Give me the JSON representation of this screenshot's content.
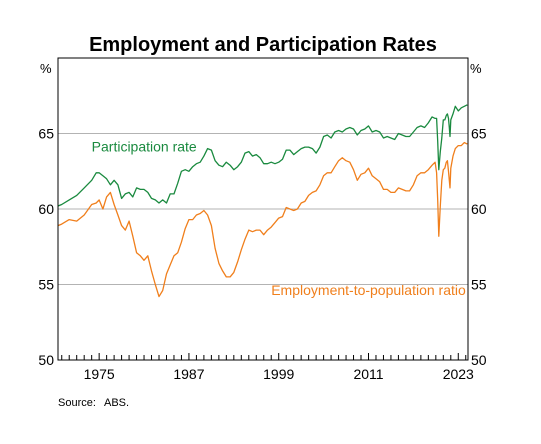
{
  "chart_data": {
    "type": "line",
    "title": "Employment and Participation Rates",
    "y_unit_left": "%",
    "y_unit_right": "%",
    "ylim": [
      50,
      70
    ],
    "xlim": [
      1969.5,
      2024.3
    ],
    "y_ticks": [
      50,
      55,
      60,
      65
    ],
    "x_tick_labels": [
      "1975",
      "1987",
      "1999",
      "2011",
      "2023"
    ],
    "x_tick_values": [
      1975,
      1987,
      1999,
      2011,
      2023
    ],
    "grid": true,
    "series": [
      {
        "name": "Participation rate",
        "color": "#1a8a3f",
        "label_year": 1974.0,
        "label_value": 63.8,
        "x": [
          1969.5,
          1970,
          1971,
          1972,
          1973,
          1974,
          1974.6,
          1975,
          1975.5,
          1976,
          1976.5,
          1977,
          1977.5,
          1978,
          1978.5,
          1979,
          1979.5,
          1980,
          1980.5,
          1981,
          1981.5,
          1982,
          1982.5,
          1983,
          1983.5,
          1984,
          1984.5,
          1985,
          1985.5,
          1986,
          1986.5,
          1987,
          1987.5,
          1988,
          1988.5,
          1989,
          1989.5,
          1990,
          1990.5,
          1991,
          1991.5,
          1992,
          1992.5,
          1993,
          1993.5,
          1994,
          1994.5,
          1995,
          1995.5,
          1996,
          1996.5,
          1997,
          1997.5,
          1998,
          1998.5,
          1999,
          1999.5,
          2000,
          2000.5,
          2001,
          2001.5,
          2002,
          2002.5,
          2003,
          2003.5,
          2004,
          2004.5,
          2005,
          2005.5,
          2006,
          2006.5,
          2007,
          2007.5,
          2008,
          2008.5,
          2009,
          2009.5,
          2010,
          2010.5,
          2011,
          2011.5,
          2012,
          2012.5,
          2013,
          2013.5,
          2014,
          2014.5,
          2015,
          2015.5,
          2016,
          2016.5,
          2017,
          2017.5,
          2018,
          2018.5,
          2019,
          2019.5,
          2019.9,
          2020.1,
          2020.25,
          2020.4,
          2020.6,
          2020.8,
          2021,
          2021.2,
          2021.4,
          2021.55,
          2021.7,
          2021.8,
          2021.9,
          2022,
          2022.3,
          2022.6,
          2023,
          2023.4,
          2023.8,
          2024.2
        ],
        "values": [
          60.2,
          60.3,
          60.6,
          60.9,
          61.4,
          61.9,
          62.4,
          62.4,
          62.2,
          62.0,
          61.6,
          61.9,
          61.6,
          60.7,
          61.0,
          61.1,
          60.8,
          61.4,
          61.3,
          61.3,
          61.1,
          60.7,
          60.6,
          60.4,
          60.6,
          60.4,
          61.0,
          61.0,
          61.7,
          62.5,
          62.6,
          62.5,
          62.8,
          63.0,
          63.1,
          63.5,
          64.0,
          63.9,
          63.2,
          62.9,
          62.8,
          63.1,
          62.9,
          62.6,
          62.8,
          63.1,
          63.7,
          63.8,
          63.5,
          63.6,
          63.4,
          63.0,
          63.0,
          63.1,
          63.0,
          63.1,
          63.3,
          63.9,
          63.9,
          63.6,
          63.8,
          64.0,
          64.1,
          64.1,
          64.0,
          63.7,
          64.1,
          64.8,
          64.9,
          64.7,
          65.1,
          65.2,
          65.1,
          65.3,
          65.4,
          65.3,
          64.9,
          65.2,
          65.3,
          65.5,
          65.1,
          65.2,
          65.1,
          64.7,
          64.8,
          64.7,
          64.6,
          65.0,
          64.9,
          64.8,
          64.8,
          65.1,
          65.4,
          65.5,
          65.4,
          65.7,
          66.1,
          66.0,
          66.0,
          64.5,
          62.6,
          63.8,
          64.7,
          65.9,
          65.9,
          66.2,
          66.3,
          66.0,
          65.4,
          64.8,
          65.9,
          66.3,
          66.8,
          66.5,
          66.7,
          66.8,
          66.9
        ]
      },
      {
        "name": "Employment-to-population ratio",
        "color": "#f07f1c",
        "label_year": 1998.0,
        "label_value": 54.3,
        "x": [
          1969.5,
          1970,
          1971,
          1972,
          1973,
          1974,
          1974.6,
          1975,
          1975.5,
          1976,
          1976.5,
          1977,
          1977.5,
          1978,
          1978.5,
          1979,
          1979.5,
          1980,
          1980.5,
          1981,
          1981.5,
          1982,
          1982.5,
          1983,
          1983.5,
          1984,
          1984.5,
          1985,
          1985.5,
          1986,
          1986.5,
          1987,
          1987.5,
          1988,
          1988.5,
          1989,
          1989.5,
          1990,
          1990.5,
          1991,
          1991.5,
          1992,
          1992.5,
          1993,
          1993.5,
          1994,
          1994.5,
          1995,
          1995.5,
          1996,
          1996.5,
          1997,
          1997.5,
          1998,
          1998.5,
          1999,
          1999.5,
          2000,
          2000.5,
          2001,
          2001.5,
          2002,
          2002.5,
          2003,
          2003.5,
          2004,
          2004.5,
          2005,
          2005.5,
          2006,
          2006.5,
          2007,
          2007.5,
          2008,
          2008.5,
          2009,
          2009.5,
          2010,
          2010.5,
          2011,
          2011.5,
          2012,
          2012.5,
          2013,
          2013.5,
          2014,
          2014.5,
          2015,
          2015.5,
          2016,
          2016.5,
          2017,
          2017.5,
          2018,
          2018.5,
          2019,
          2019.5,
          2019.9,
          2020.1,
          2020.25,
          2020.4,
          2020.6,
          2020.8,
          2021,
          2021.2,
          2021.4,
          2021.55,
          2021.7,
          2021.8,
          2021.9,
          2022,
          2022.3,
          2022.6,
          2023,
          2023.4,
          2023.8,
          2024.2
        ],
        "values": [
          58.9,
          59.0,
          59.3,
          59.2,
          59.6,
          60.3,
          60.4,
          60.6,
          60.0,
          60.8,
          61.1,
          60.3,
          59.6,
          58.9,
          58.6,
          59.2,
          58.2,
          57.1,
          56.9,
          56.6,
          56.9,
          55.9,
          55.0,
          54.2,
          54.6,
          55.7,
          56.3,
          56.9,
          57.1,
          57.8,
          58.7,
          59.3,
          59.3,
          59.6,
          59.7,
          59.9,
          59.6,
          58.9,
          57.4,
          56.4,
          55.9,
          55.5,
          55.5,
          55.8,
          56.5,
          57.3,
          58.0,
          58.6,
          58.5,
          58.6,
          58.6,
          58.3,
          58.6,
          58.8,
          59.1,
          59.4,
          59.5,
          60.1,
          60.0,
          59.9,
          60.0,
          60.4,
          60.5,
          60.9,
          61.1,
          61.2,
          61.6,
          62.2,
          62.4,
          62.4,
          62.8,
          63.2,
          63.4,
          63.2,
          63.1,
          62.6,
          61.9,
          62.3,
          62.4,
          62.7,
          62.2,
          62.0,
          61.8,
          61.3,
          61.3,
          61.1,
          61.1,
          61.4,
          61.3,
          61.2,
          61.2,
          61.6,
          62.2,
          62.4,
          62.4,
          62.6,
          62.9,
          63.1,
          62.4,
          60.6,
          58.2,
          60.2,
          61.9,
          62.6,
          62.7,
          63.1,
          63.2,
          62.5,
          61.9,
          61.4,
          62.7,
          63.5,
          64.0,
          64.2,
          64.2,
          64.4,
          64.3
        ]
      }
    ],
    "source_label": "Source:",
    "source_text": "ABS."
  }
}
